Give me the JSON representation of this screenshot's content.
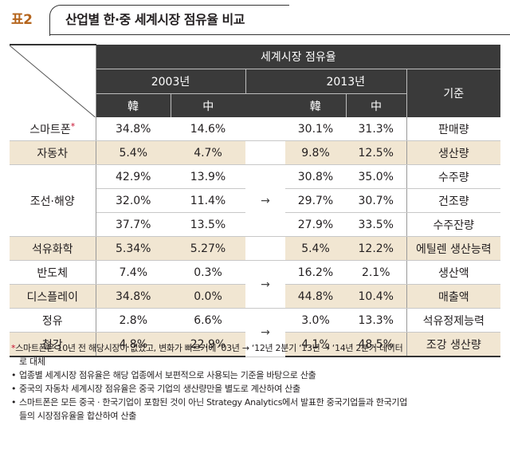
{
  "figure": {
    "label": "표2",
    "title": "산업별 한·중 세계시장 점유율 비교"
  },
  "table": {
    "header": {
      "group": "세계시장 점유율",
      "year1": "2003년",
      "year2": "2013년",
      "basis": "기준",
      "korea": "韓",
      "china": "中"
    },
    "rows": [
      {
        "industry": "스마트폰",
        "star": "*",
        "kr2003": "34.8%",
        "cn2003": "14.6%",
        "kr2013": "30.1%",
        "cn2013": "31.3%",
        "basis": "판매량"
      },
      {
        "industry": "자동차",
        "kr2003": "5.4%",
        "cn2003": "4.7%",
        "kr2013": "9.8%",
        "cn2013": "12.5%",
        "basis": "생산량"
      },
      {
        "industry": "조선·해양",
        "kr2003": "42.9%",
        "cn2003": "13.9%",
        "kr2013": "30.8%",
        "cn2013": "35.0%",
        "basis": "수주량"
      },
      {
        "kr2003": "32.0%",
        "cn2003": "11.4%",
        "kr2013": "29.7%",
        "cn2013": "30.7%",
        "basis": "건조량"
      },
      {
        "kr2003": "37.7%",
        "cn2003": "13.5%",
        "kr2013": "27.9%",
        "cn2013": "33.5%",
        "basis": "수주잔량"
      },
      {
        "industry": "석유화학",
        "kr2003": "5.34%",
        "cn2003": "5.27%",
        "kr2013": "5.4%",
        "cn2013": "12.2%",
        "basis": "에틸렌 생산능력"
      },
      {
        "industry": "반도체",
        "kr2003": "7.4%",
        "cn2003": "0.3%",
        "kr2013": "16.2%",
        "cn2013": "2.1%",
        "basis": "생산액"
      },
      {
        "industry": "디스플레이",
        "kr2003": "34.8%",
        "cn2003": "0.0%",
        "kr2013": "44.8%",
        "cn2013": "10.4%",
        "basis": "매출액"
      },
      {
        "industry": "정유",
        "kr2003": "2.8%",
        "cn2003": "6.6%",
        "kr2013": "3.0%",
        "cn2013": "13.3%",
        "basis": "석유정제능력"
      },
      {
        "industry": "철강",
        "kr2003": "4.8%",
        "cn2003": "22.9%",
        "kr2013": "4.1%",
        "cn2013": "48.5%",
        "basis": "조강 생산량"
      }
    ],
    "arrow": "→"
  },
  "notes": {
    "star_mark": "*",
    "star_note_1": "스마트폰은 10년 전 해당시장이 없었고, 변화가 빠르기에 ‘03년 → ‘12년 2분기 ‘13년 → ‘14년 2분기 데이터",
    "star_note_2": "로 대체",
    "bullet": "•",
    "items": [
      "업종별 세계시장 점유율은 해당 업종에서 보편적으로 사용되는 기준을 바탕으로 산출",
      "중국의 자동차 세계시장 점유율은 중국 기업의 생산량만을 별도로 계산하여 산출",
      "스마트폰은 모든 중국 · 한국기업이 포함된 것이 아닌 Strategy Analytics에서 발표한 중국기업들과 한국기업"
    ],
    "item_3_cont": "들의 시장점유율을 합산하여 산출"
  },
  "colors": {
    "header_bg": "#3a3a3a",
    "shaded_row": "#f1e6d2",
    "label_accent": "#b5651d",
    "star_red": "#c8102e"
  }
}
